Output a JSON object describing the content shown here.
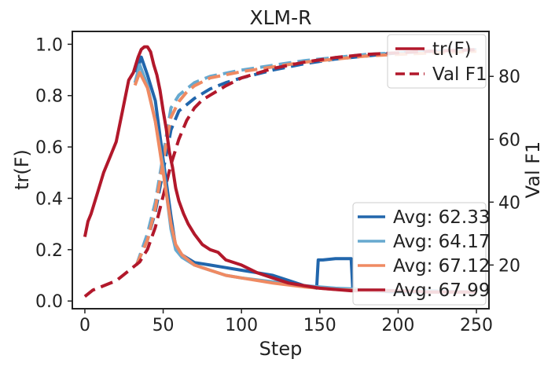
{
  "chart_data": {
    "type": "line",
    "title": "XLM-R",
    "xlabel": "Step",
    "ylabel_left": "tr(F)",
    "ylabel_right": "Val F1",
    "xlim": [
      -8,
      258
    ],
    "ylim_left": [
      -0.03,
      1.05
    ],
    "ylim_right": [
      6.1,
      94.3
    ],
    "xticks": [
      0,
      50,
      100,
      150,
      200,
      250
    ],
    "yticks_left": [
      0.0,
      0.2,
      0.4,
      0.6,
      0.8,
      1.0
    ],
    "yticks_right": [
      20,
      40,
      60,
      80
    ],
    "tick_labels": {
      "x": [
        "0",
        "50",
        "100",
        "150",
        "200",
        "250"
      ],
      "y_left": [
        "0.0",
        "0.2",
        "0.4",
        "0.6",
        "0.8",
        "1.0"
      ],
      "y_right": [
        "20",
        "40",
        "60",
        "80"
      ]
    },
    "legend_upper": {
      "position": "top-right",
      "entries": [
        {
          "label": "tr(F)",
          "style": "solid",
          "color": "#b2182b"
        },
        {
          "label": "Val F1",
          "style": "dashed",
          "color": "#b2182b"
        }
      ]
    },
    "legend_lower": {
      "position": "bottom-right",
      "entries": [
        {
          "label": "Avg: 62.33",
          "color": "#2166ac"
        },
        {
          "label": "Avg: 64.17",
          "color": "#67a9cf"
        },
        {
          "label": "Avg: 67.12",
          "color": "#ef8a62"
        },
        {
          "label": "Avg: 67.99",
          "color": "#b2182b"
        }
      ]
    },
    "series": [
      {
        "name": "Avg: 62.33",
        "color": "#2166ac",
        "tr_F": {
          "x": [
            33,
            36,
            40,
            45,
            50,
            55,
            58,
            62,
            70,
            80,
            90,
            100,
            110,
            120,
            130,
            140,
            148,
            149,
            152,
            160,
            170,
            171,
            173,
            180,
            200,
            220,
            240,
            250
          ],
          "y": [
            0.89,
            0.95,
            0.88,
            0.78,
            0.55,
            0.33,
            0.21,
            0.18,
            0.15,
            0.14,
            0.13,
            0.12,
            0.11,
            0.1,
            0.08,
            0.06,
            0.05,
            0.16,
            0.16,
            0.165,
            0.165,
            0.05,
            0.045,
            0.04,
            0.035,
            0.035,
            0.035,
            0.035
          ]
        },
        "val_f1": {
          "x": [
            33,
            40,
            45,
            50,
            55,
            60,
            70,
            80,
            90,
            100,
            120,
            140,
            160,
            180,
            200,
            220,
            240,
            250
          ],
          "y": [
            20,
            28,
            37,
            50,
            63,
            69,
            73,
            76,
            78,
            79.5,
            82,
            84,
            85.5,
            86.5,
            87.5,
            88,
            88.3,
            88.5
          ]
        }
      },
      {
        "name": "Avg: 64.17",
        "color": "#67a9cf",
        "tr_F": {
          "x": [
            32,
            35,
            40,
            45,
            50,
            55,
            58,
            62,
            70,
            80,
            90,
            100,
            120,
            140,
            160,
            180,
            200,
            220,
            250
          ],
          "y": [
            0.85,
            0.92,
            0.84,
            0.7,
            0.52,
            0.28,
            0.2,
            0.17,
            0.14,
            0.12,
            0.1,
            0.09,
            0.075,
            0.06,
            0.05,
            0.045,
            0.04,
            0.04,
            0.035
          ]
        },
        "val_f1": {
          "x": [
            33,
            40,
            45,
            50,
            55,
            60,
            65,
            70,
            80,
            90,
            100,
            120,
            140,
            160,
            180,
            200,
            250
          ],
          "y": [
            20,
            30,
            40,
            55,
            70,
            74,
            76,
            78,
            80,
            81,
            82,
            83.5,
            85,
            86,
            87,
            87.5,
            88.5
          ]
        }
      },
      {
        "name": "Avg: 67.12",
        "color": "#ef8a62",
        "tr_F": {
          "x": [
            32,
            35,
            40,
            45,
            50,
            55,
            58,
            62,
            70,
            80,
            90,
            100,
            120,
            140,
            160,
            180,
            200,
            220,
            250
          ],
          "y": [
            0.84,
            0.89,
            0.83,
            0.7,
            0.5,
            0.3,
            0.22,
            0.18,
            0.14,
            0.12,
            0.1,
            0.09,
            0.07,
            0.055,
            0.045,
            0.04,
            0.04,
            0.035,
            0.035
          ]
        },
        "val_f1": {
          "x": [
            33,
            40,
            45,
            50,
            55,
            60,
            65,
            70,
            80,
            90,
            100,
            120,
            140,
            160,
            180,
            200,
            250
          ],
          "y": [
            20,
            28,
            38,
            53,
            67,
            72,
            75,
            77,
            79.5,
            80.5,
            81.5,
            83,
            84.5,
            85.5,
            86.5,
            87,
            88
          ]
        }
      },
      {
        "name": "Avg: 67.99",
        "color": "#b2182b",
        "tr_F": {
          "x": [
            0,
            2,
            4,
            8,
            12,
            16,
            20,
            24,
            28,
            31,
            34,
            36,
            38,
            40,
            42,
            44,
            46,
            48,
            50,
            52,
            54,
            56,
            58,
            60,
            63,
            66,
            70,
            75,
            80,
            85,
            90,
            100,
            110,
            120,
            130,
            140,
            150,
            160,
            170,
            180,
            200,
            220,
            240,
            250
          ],
          "y": [
            0.25,
            0.31,
            0.34,
            0.42,
            0.5,
            0.56,
            0.62,
            0.74,
            0.86,
            0.89,
            0.95,
            0.98,
            0.99,
            0.99,
            0.97,
            0.92,
            0.88,
            0.82,
            0.74,
            0.67,
            0.58,
            0.52,
            0.44,
            0.39,
            0.34,
            0.3,
            0.26,
            0.22,
            0.2,
            0.19,
            0.16,
            0.14,
            0.11,
            0.09,
            0.07,
            0.06,
            0.05,
            0.045,
            0.04,
            0.04,
            0.04,
            0.035,
            0.035,
            0.035
          ]
        },
        "val_f1": {
          "x": [
            0,
            5,
            10,
            15,
            20,
            25,
            30,
            35,
            40,
            45,
            50,
            55,
            60,
            65,
            70,
            75,
            80,
            90,
            100,
            110,
            120,
            140,
            160,
            180,
            200,
            220,
            250
          ],
          "y": [
            10,
            12,
            13,
            14,
            15,
            17,
            19,
            21,
            25,
            32,
            42,
            52,
            60,
            66,
            70,
            72.5,
            74,
            77,
            79.5,
            81,
            82.5,
            84.5,
            86,
            87,
            87.5,
            88,
            88.5
          ]
        }
      }
    ]
  }
}
